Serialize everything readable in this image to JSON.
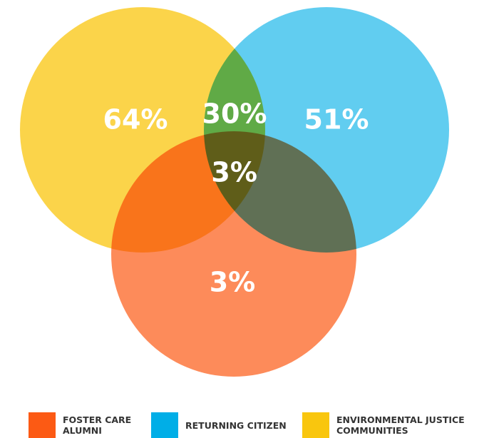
{
  "chart_data": {
    "type": "venn",
    "sets": [
      {
        "name": "ENVIRONMENTAL JUSTICE COMMUNITIES",
        "color": "#f9c60e",
        "value": 64,
        "value_label": "64%"
      },
      {
        "name": "RETURNING CITIZEN",
        "color": "#00aee7",
        "value": 51,
        "value_label": "51%"
      },
      {
        "name": "FOSTER CARE ALUMNI",
        "color": "#fc5a14",
        "value": 3,
        "value_label": "3%"
      }
    ],
    "intersections": [
      {
        "sets": [
          0,
          1
        ],
        "value": 30,
        "value_label": "30%"
      },
      {
        "sets": [
          0,
          1,
          2
        ],
        "value": 3,
        "value_label": "3%"
      }
    ]
  }
}
